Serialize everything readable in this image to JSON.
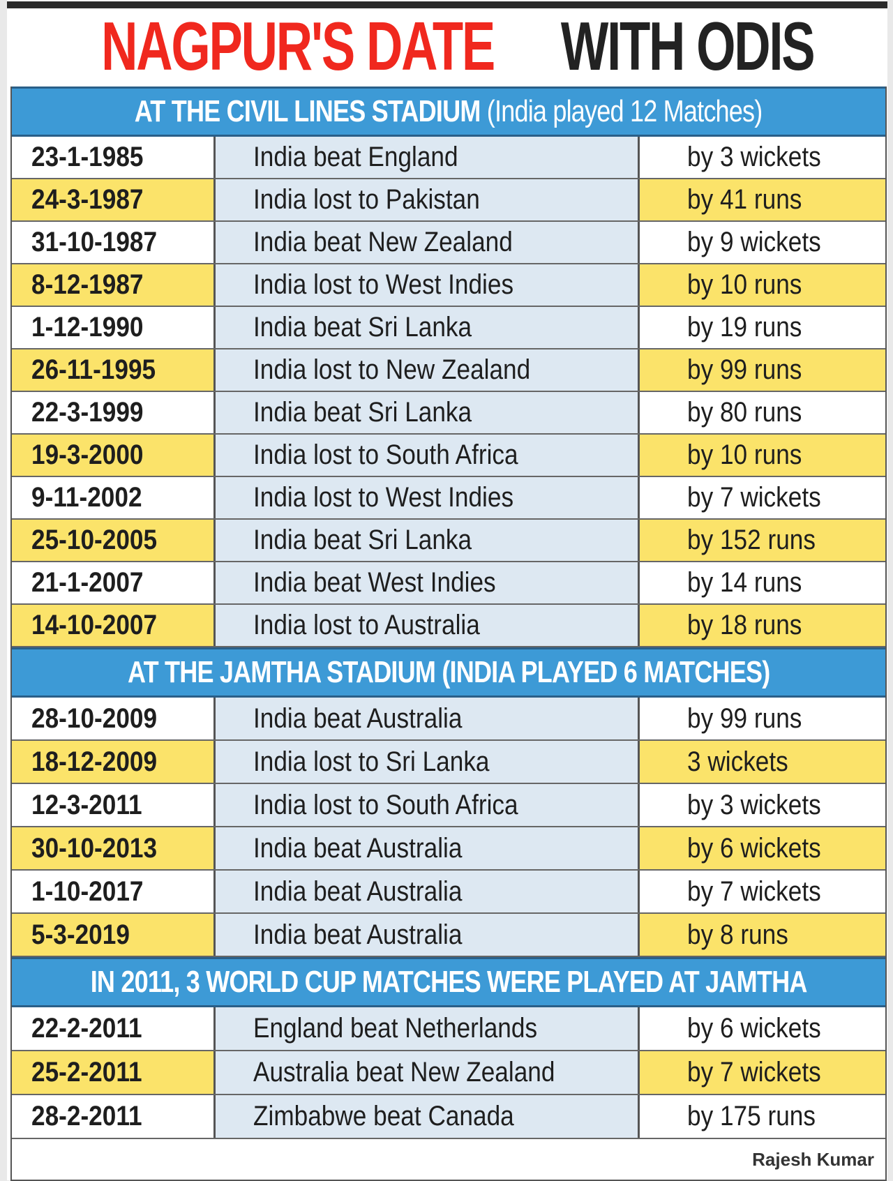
{
  "title": {
    "part1": "NAGPUR'S DATE",
    "part2": "WITH ODIS"
  },
  "sections": [
    {
      "heading": "AT THE CIVIL LINES STADIUM",
      "heading_sub": "(India played 12 Matches)",
      "rows": [
        {
          "date": "23-1-1985",
          "result": "India beat England",
          "margin": "by 3 wickets"
        },
        {
          "date": "24-3-1987",
          "result": "India lost to Pakistan",
          "margin": "by 41 runs"
        },
        {
          "date": "31-10-1987",
          "result": "India beat New Zealand",
          "margin": "by 9 wickets"
        },
        {
          "date": "8-12-1987",
          "result": "India lost to West Indies",
          "margin": "by 10 runs"
        },
        {
          "date": "1-12-1990",
          "result": "India beat Sri Lanka",
          "margin": "by 19 runs"
        },
        {
          "date": "26-11-1995",
          "result": "India lost to New Zealand",
          "margin": "by 99 runs"
        },
        {
          "date": "22-3-1999",
          "result": "India beat Sri Lanka",
          "margin": "by 80 runs"
        },
        {
          "date": "19-3-2000",
          "result": "India lost to South Africa",
          "margin": "by 10 runs"
        },
        {
          "date": "9-11-2002",
          "result": "India lost to West Indies",
          "margin": "by 7 wickets"
        },
        {
          "date": "25-10-2005",
          "result": "India beat Sri Lanka",
          "margin": "by 152 runs"
        },
        {
          "date": "21-1-2007",
          "result": "India beat West Indies",
          "margin": "by 14 runs"
        },
        {
          "date": "14-10-2007",
          "result": "India lost to Australia",
          "margin": "by 18 runs"
        }
      ]
    },
    {
      "heading": "AT THE JAMTHA STADIUM (INDIA PLAYED 6 MATCHES)",
      "rows": [
        {
          "date": "28-10-2009",
          "result": "India beat Australia",
          "margin": "by 99 runs"
        },
        {
          "date": "18-12-2009",
          "result": "India lost to Sri Lanka",
          "margin": "3 wickets"
        },
        {
          "date": "12-3-2011",
          "result": "India lost to South Africa",
          "margin": "by 3 wickets"
        },
        {
          "date": "30-10-2013",
          "result": "India beat Australia",
          "margin": "by 6 wickets"
        },
        {
          "date": "1-10-2017",
          "result": "India beat Australia",
          "margin": "by 7 wickets"
        },
        {
          "date": "5-3-2019",
          "result": "India beat Australia",
          "margin": "by 8 runs"
        }
      ]
    },
    {
      "heading": "IN 2011, 3 WORLD CUP MATCHES WERE PLAYED AT JAMTHA",
      "rows": [
        {
          "date": "22-2-2011",
          "result": "England beat Netherlands",
          "margin": "by 6 wickets"
        },
        {
          "date": "25-2-2011",
          "result": "Australia beat New Zealand",
          "margin": "by 7 wickets"
        },
        {
          "date": "28-2-2011",
          "result": "Zimbabwe beat Canada",
          "margin": "by 175 runs"
        }
      ]
    }
  ],
  "credit": "Rajesh Kumar",
  "colors": {
    "red": "#f0281e",
    "blue": "#3d9ad6",
    "yellow": "#fbe36a",
    "light_blue": "#dde8f2"
  }
}
